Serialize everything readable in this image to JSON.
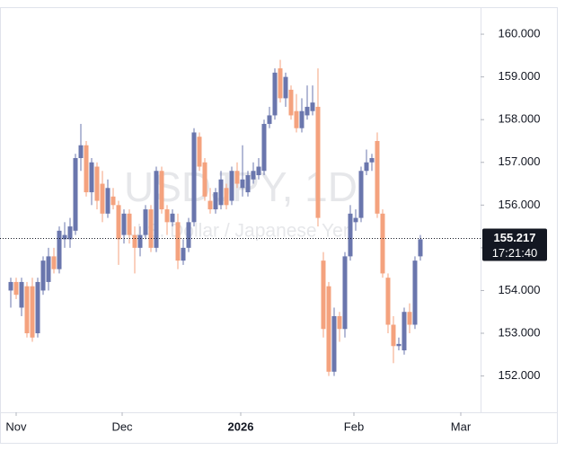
{
  "chart_data": {
    "type": "candlestick",
    "watermark_title": "USDJPY, 1D",
    "watermark_subtitle": "U.S. Dollar / Japanese Yen",
    "up_color": "#6a76ad",
    "down_color": "#f4a27e",
    "xlim": [
      -2,
      87.17
    ],
    "xticks": [
      {
        "value": 1,
        "label": "Nov"
      },
      {
        "value": 20.67,
        "label": "Dec"
      },
      {
        "value": 42.67,
        "label": "2026"
      },
      {
        "value": 63.67,
        "label": "Feb"
      },
      {
        "value": 83.5,
        "label": "Mar"
      }
    ],
    "ylim": [
      151.15,
      160.59
    ],
    "yticks": [
      {
        "value": 152,
        "label": "152.000"
      },
      {
        "value": 153,
        "label": "153.000"
      },
      {
        "value": 154,
        "label": "154.000"
      },
      {
        "value": 155,
        "label": "155.000"
      },
      {
        "value": 156,
        "label": "156.000"
      },
      {
        "value": 157,
        "label": "157.000"
      },
      {
        "value": 158,
        "label": "158.000"
      },
      {
        "value": 159,
        "label": "159.000"
      },
      {
        "value": 160,
        "label": "160.000"
      }
    ],
    "last_price": {
      "value": 155.217,
      "label": "155.217"
    },
    "countdown": "17:21:40",
    "candles": [
      [
        154.0,
        154.3,
        153.6,
        154.2
      ],
      [
        154.2,
        154.3,
        153.8,
        153.9
      ],
      [
        153.6,
        154.3,
        153.4,
        154.2
      ],
      [
        154.1,
        154.2,
        152.9,
        153.0
      ],
      [
        154.1,
        154.3,
        152.8,
        152.9
      ],
      [
        153.0,
        154.3,
        152.9,
        154.2
      ],
      [
        154.0,
        154.8,
        153.9,
        154.7
      ],
      [
        154.2,
        155.0,
        154.0,
        154.8
      ],
      [
        154.8,
        155.0,
        154.4,
        154.5
      ],
      [
        154.5,
        155.5,
        154.4,
        155.4
      ],
      [
        155.2,
        155.6,
        155.0,
        155.3
      ],
      [
        155.2,
        155.7,
        155.0,
        155.5
      ],
      [
        155.4,
        157.2,
        155.3,
        157.1
      ],
      [
        157.1,
        157.9,
        156.8,
        157.4
      ],
      [
        157.4,
        157.5,
        156.2,
        156.3
      ],
      [
        156.3,
        157.1,
        156.0,
        157.0
      ],
      [
        156.9,
        157.0,
        155.9,
        156.1
      ],
      [
        156.5,
        156.8,
        155.6,
        155.8
      ],
      [
        155.8,
        156.6,
        155.7,
        156.4
      ],
      [
        156.2,
        156.4,
        155.9,
        156.0
      ],
      [
        156.0,
        156.1,
        154.6,
        155.2
      ],
      [
        155.3,
        155.9,
        155.1,
        155.8
      ],
      [
        155.8,
        155.9,
        155.1,
        155.3
      ],
      [
        155.3,
        155.5,
        154.4,
        155.0
      ],
      [
        155.0,
        155.5,
        154.8,
        155.3
      ],
      [
        155.3,
        156.0,
        155.2,
        155.9
      ],
      [
        155.9,
        156.0,
        154.9,
        155.0
      ],
      [
        155.0,
        156.9,
        154.9,
        156.8
      ],
      [
        156.8,
        156.9,
        155.8,
        155.9
      ],
      [
        155.9,
        156.0,
        155.3,
        155.6
      ],
      [
        155.6,
        155.9,
        155.5,
        155.8
      ],
      [
        155.6,
        155.8,
        154.5,
        154.7
      ],
      [
        154.7,
        155.2,
        154.6,
        155.0
      ],
      [
        155.0,
        155.7,
        154.9,
        155.6
      ],
      [
        155.6,
        157.8,
        155.5,
        157.7
      ],
      [
        157.6,
        157.7,
        156.8,
        156.9
      ],
      [
        157.0,
        157.1,
        156.1,
        156.2
      ],
      [
        156.1,
        156.4,
        155.8,
        155.9
      ],
      [
        155.9,
        156.4,
        155.8,
        156.3
      ],
      [
        156.0,
        156.8,
        155.9,
        156.6
      ],
      [
        156.4,
        156.5,
        155.9,
        156.0
      ],
      [
        156.1,
        156.9,
        156.0,
        156.8
      ],
      [
        156.8,
        157.0,
        156.4,
        156.5
      ],
      [
        156.4,
        157.4,
        156.2,
        156.6
      ],
      [
        156.3,
        156.8,
        156.2,
        156.7
      ],
      [
        156.6,
        157.0,
        156.5,
        156.8
      ],
      [
        156.7,
        157.1,
        156.6,
        156.9
      ],
      [
        156.8,
        158.0,
        156.7,
        157.9
      ],
      [
        157.9,
        158.3,
        157.8,
        158.1
      ],
      [
        158.1,
        159.2,
        158.0,
        159.1
      ],
      [
        159.2,
        159.4,
        158.4,
        158.5
      ],
      [
        158.5,
        159.1,
        158.3,
        159.0
      ],
      [
        158.7,
        158.8,
        158.0,
        158.1
      ],
      [
        158.2,
        158.6,
        157.7,
        157.8
      ],
      [
        157.8,
        158.5,
        157.7,
        158.2
      ],
      [
        158.1,
        158.8,
        158.0,
        158.3
      ],
      [
        158.2,
        158.8,
        158.1,
        158.4
      ],
      [
        158.3,
        159.2,
        155.5,
        155.7
      ],
      [
        154.7,
        154.9,
        152.9,
        153.1
      ],
      [
        154.1,
        154.2,
        152.0,
        152.1
      ],
      [
        152.1,
        153.6,
        152.0,
        153.4
      ],
      [
        153.4,
        153.5,
        152.8,
        153.1
      ],
      [
        153.1,
        154.9,
        152.9,
        154.8
      ],
      [
        154.8,
        156.0,
        154.7,
        155.8
      ],
      [
        155.6,
        155.9,
        155.4,
        155.7
      ],
      [
        155.7,
        156.9,
        155.6,
        156.8
      ],
      [
        156.8,
        157.3,
        156.7,
        157.0
      ],
      [
        157.0,
        157.2,
        156.8,
        157.1
      ],
      [
        157.5,
        157.7,
        155.7,
        155.8
      ],
      [
        155.8,
        155.9,
        154.3,
        154.4
      ],
      [
        154.3,
        154.4,
        153.0,
        153.2
      ],
      [
        153.2,
        153.4,
        152.3,
        152.7
      ],
      [
        152.7,
        152.9,
        152.6,
        152.75
      ],
      [
        152.6,
        153.6,
        152.5,
        153.5
      ],
      [
        153.5,
        153.7,
        153.0,
        153.2
      ],
      [
        153.2,
        154.8,
        153.1,
        154.7
      ],
      [
        154.8,
        155.3,
        154.7,
        155.2
      ]
    ]
  }
}
